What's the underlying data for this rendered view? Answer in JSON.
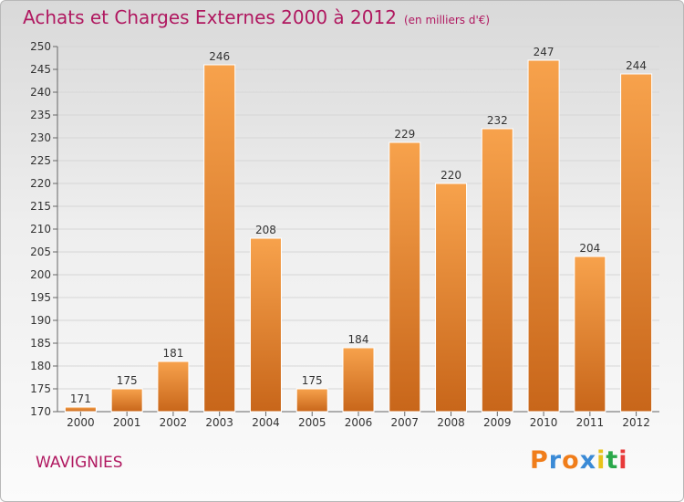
{
  "header": {
    "title": "Achats et Charges Externes 2000 à 2012",
    "unit": "(en milliers d'€)"
  },
  "footer": {
    "place": "WAVIGNIES",
    "logo_text": "Proxiti"
  },
  "colors": {
    "title": "#b01860",
    "bar_light": "#f7a24c",
    "bar_dark": "#c8661a",
    "logo": [
      "#f07d1a",
      "#3a8ad6",
      "#f07d1a",
      "#3a8ad6",
      "#e8c21a",
      "#2aa84a",
      "#e83a3a"
    ]
  },
  "chart_data": {
    "type": "bar",
    "categories": [
      "2000",
      "2001",
      "2002",
      "2003",
      "2004",
      "2005",
      "2006",
      "2007",
      "2008",
      "2009",
      "2010",
      "2011",
      "2012"
    ],
    "values": [
      171,
      175,
      181,
      246,
      208,
      175,
      184,
      229,
      220,
      232,
      247,
      204,
      244
    ],
    "ylim": [
      170,
      250
    ],
    "yticks": [
      170,
      175,
      180,
      185,
      190,
      195,
      200,
      205,
      210,
      215,
      220,
      225,
      230,
      235,
      240,
      245,
      250
    ],
    "grid": true
  }
}
